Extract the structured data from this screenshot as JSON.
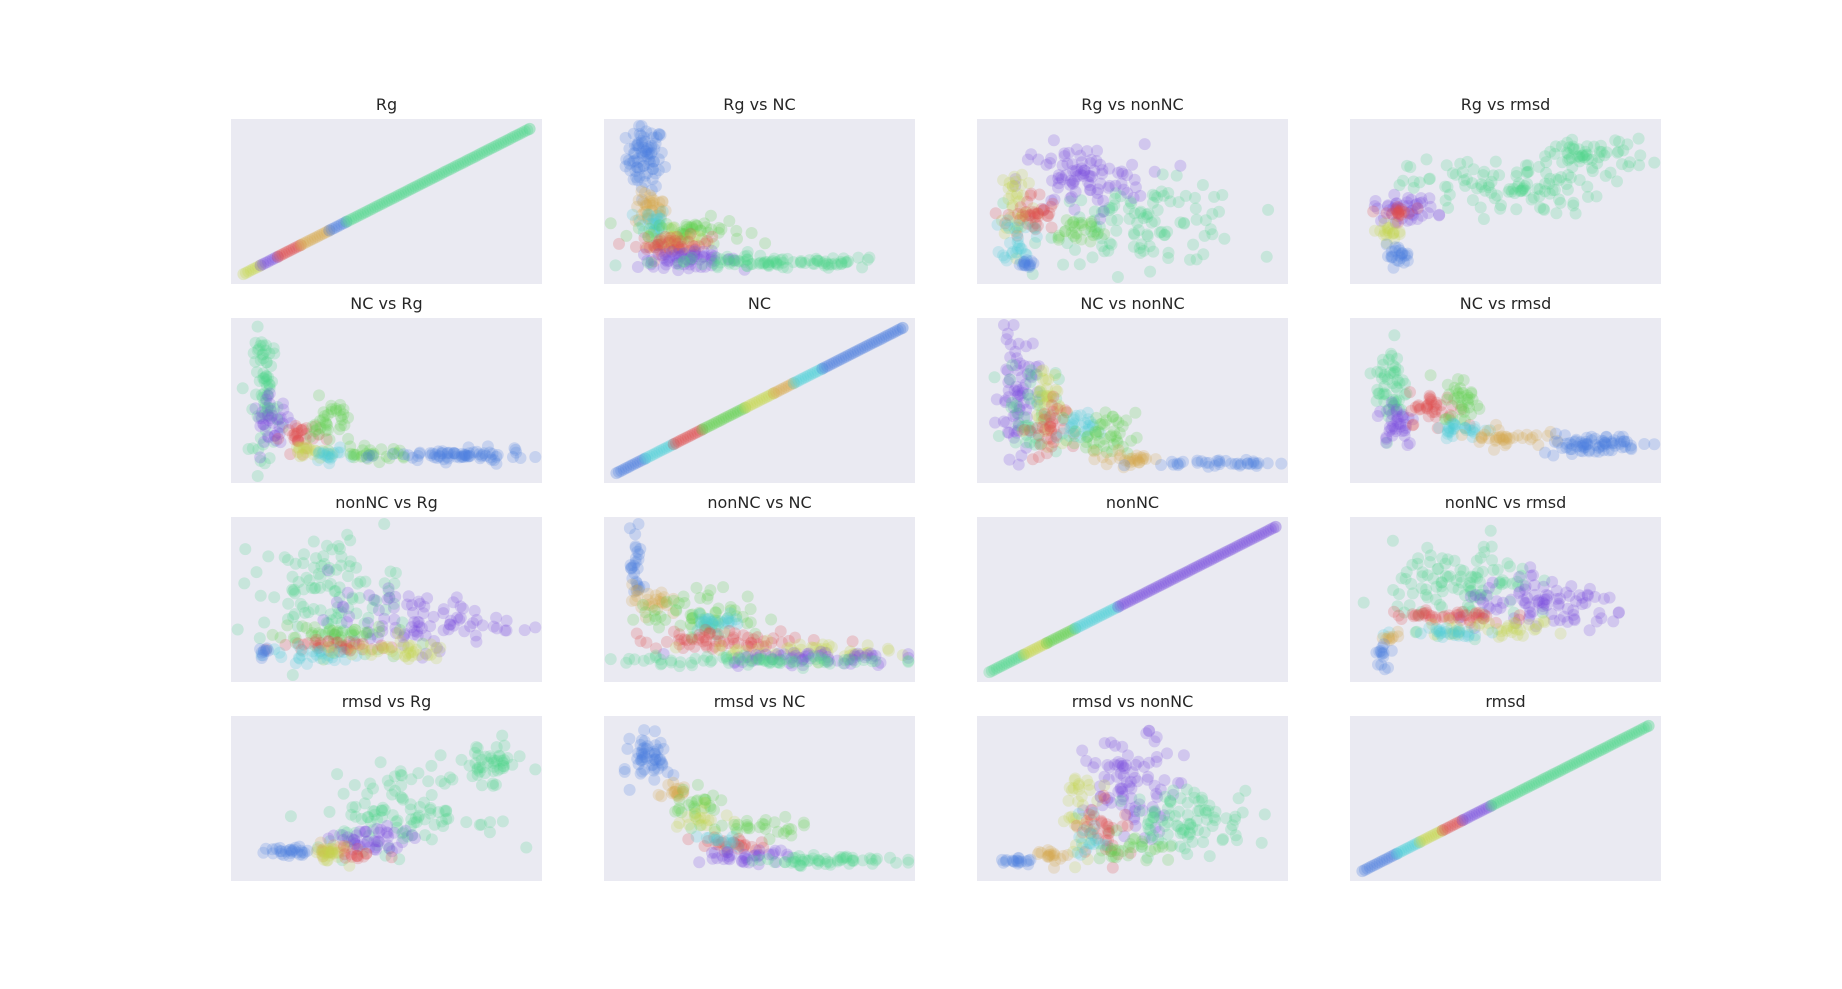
{
  "figure": {
    "background": "#ffffff",
    "panel_background": "#eaeaf2"
  },
  "colors": [
    "#4c7fe0",
    "#7a4fe0",
    "#e04c4c",
    "#4ccfd6",
    "#c5d64c",
    "#60d04c",
    "#4cd68a",
    "#d6a84c"
  ],
  "chart_data": [
    {
      "type": "scatter",
      "title": "Rg",
      "shape": "diag",
      "segments": [
        [
          0.0,
          0.06,
          4
        ],
        [
          0.06,
          0.12,
          1
        ],
        [
          0.12,
          0.2,
          2
        ],
        [
          0.2,
          0.3,
          7
        ],
        [
          0.3,
          0.36,
          0
        ],
        [
          0.36,
          1.0,
          6
        ]
      ]
    },
    {
      "type": "scatter",
      "title": "Rg vs NC",
      "shape": "scatter",
      "blobs": [
        [
          0,
          0.1,
          0.8,
          0.06,
          0.2,
          0.9
        ],
        [
          7,
          0.12,
          0.45,
          0.05,
          0.1,
          0.4
        ],
        [
          3,
          0.12,
          0.35,
          0.05,
          0.1,
          0.3
        ],
        [
          5,
          0.25,
          0.3,
          0.18,
          0.08,
          0.6
        ],
        [
          4,
          0.2,
          0.22,
          0.08,
          0.08,
          0.35
        ],
        [
          2,
          0.2,
          0.2,
          0.12,
          0.06,
          0.5
        ],
        [
          1,
          0.25,
          0.1,
          0.16,
          0.05,
          0.7
        ],
        [
          6,
          0.55,
          0.08,
          0.38,
          0.04,
          1.0
        ]
      ]
    },
    {
      "type": "scatter",
      "title": "Rg vs nonNC",
      "shape": "scatter",
      "blobs": [
        [
          6,
          0.55,
          0.35,
          0.32,
          0.25,
          1.2
        ],
        [
          1,
          0.32,
          0.65,
          0.2,
          0.22,
          1.0
        ],
        [
          4,
          0.1,
          0.5,
          0.06,
          0.25,
          0.4
        ],
        [
          2,
          0.15,
          0.4,
          0.08,
          0.15,
          0.4
        ],
        [
          3,
          0.1,
          0.25,
          0.05,
          0.15,
          0.3
        ],
        [
          5,
          0.3,
          0.3,
          0.1,
          0.1,
          0.3
        ],
        [
          0,
          0.12,
          0.07,
          0.03,
          0.02,
          0.15
        ]
      ]
    },
    {
      "type": "scatter",
      "title": "Rg vs rmsd",
      "shape": "scatter",
      "blobs": [
        [
          6,
          0.5,
          0.6,
          0.3,
          0.18,
          1.2
        ],
        [
          6,
          0.8,
          0.82,
          0.18,
          0.1,
          0.6
        ],
        [
          1,
          0.15,
          0.45,
          0.1,
          0.08,
          0.5
        ],
        [
          2,
          0.12,
          0.42,
          0.05,
          0.05,
          0.2
        ],
        [
          4,
          0.1,
          0.3,
          0.06,
          0.05,
          0.2
        ],
        [
          0,
          0.12,
          0.13,
          0.04,
          0.06,
          0.25
        ]
      ]
    },
    {
      "type": "scatter",
      "title": "NC vs Rg",
      "shape": "scatter",
      "blobs": [
        [
          6,
          0.08,
          0.55,
          0.04,
          0.4,
          0.8
        ],
        [
          1,
          0.1,
          0.35,
          0.06,
          0.15,
          0.4
        ],
        [
          2,
          0.2,
          0.25,
          0.06,
          0.1,
          0.3
        ],
        [
          5,
          0.3,
          0.35,
          0.06,
          0.15,
          0.4
        ],
        [
          4,
          0.22,
          0.15,
          0.06,
          0.05,
          0.2
        ],
        [
          3,
          0.3,
          0.12,
          0.06,
          0.04,
          0.2
        ],
        [
          5,
          0.45,
          0.13,
          0.12,
          0.04,
          0.3
        ],
        [
          0,
          0.75,
          0.12,
          0.22,
          0.04,
          0.8
        ]
      ]
    },
    {
      "type": "scatter",
      "title": "NC",
      "shape": "diag",
      "segments": [
        [
          0.0,
          0.1,
          0
        ],
        [
          0.1,
          0.2,
          3
        ],
        [
          0.2,
          0.3,
          2
        ],
        [
          0.3,
          0.45,
          5
        ],
        [
          0.45,
          0.55,
          4
        ],
        [
          0.55,
          0.62,
          7
        ],
        [
          0.62,
          0.72,
          3
        ],
        [
          0.72,
          1.0,
          0
        ]
      ]
    },
    {
      "type": "scatter",
      "title": "NC vs nonNC",
      "shape": "scatter",
      "blobs": [
        [
          1,
          0.1,
          0.55,
          0.06,
          0.4,
          0.8
        ],
        [
          6,
          0.15,
          0.45,
          0.08,
          0.3,
          0.5
        ],
        [
          4,
          0.2,
          0.5,
          0.06,
          0.25,
          0.4
        ],
        [
          2,
          0.2,
          0.3,
          0.06,
          0.2,
          0.4
        ],
        [
          3,
          0.3,
          0.3,
          0.06,
          0.1,
          0.3
        ],
        [
          5,
          0.4,
          0.25,
          0.1,
          0.15,
          0.5
        ],
        [
          7,
          0.5,
          0.1,
          0.1,
          0.05,
          0.3
        ],
        [
          0,
          0.8,
          0.07,
          0.18,
          0.02,
          0.4
        ]
      ]
    },
    {
      "type": "scatter",
      "title": "NC vs rmsd",
      "shape": "scatter",
      "blobs": [
        [
          6,
          0.1,
          0.6,
          0.05,
          0.3,
          0.6
        ],
        [
          1,
          0.12,
          0.35,
          0.06,
          0.15,
          0.4
        ],
        [
          2,
          0.25,
          0.45,
          0.08,
          0.1,
          0.4
        ],
        [
          5,
          0.35,
          0.5,
          0.06,
          0.15,
          0.4
        ],
        [
          3,
          0.35,
          0.3,
          0.1,
          0.05,
          0.3
        ],
        [
          7,
          0.5,
          0.25,
          0.12,
          0.06,
          0.4
        ],
        [
          0,
          0.8,
          0.2,
          0.16,
          0.06,
          0.8
        ]
      ]
    },
    {
      "type": "scatter",
      "title": "nonNC vs Rg",
      "shape": "scatter",
      "blobs": [
        [
          6,
          0.3,
          0.55,
          0.22,
          0.35,
          1.2
        ],
        [
          1,
          0.6,
          0.35,
          0.28,
          0.18,
          1.0
        ],
        [
          5,
          0.3,
          0.25,
          0.18,
          0.1,
          0.5
        ],
        [
          2,
          0.3,
          0.18,
          0.2,
          0.05,
          0.4
        ],
        [
          3,
          0.25,
          0.12,
          0.15,
          0.05,
          0.3
        ],
        [
          4,
          0.5,
          0.15,
          0.2,
          0.06,
          0.4
        ],
        [
          0,
          0.07,
          0.12,
          0.02,
          0.04,
          0.1
        ]
      ]
    },
    {
      "type": "scatter",
      "title": "nonNC vs NC",
      "shape": "scatter",
      "blobs": [
        [
          0,
          0.07,
          0.7,
          0.02,
          0.25,
          0.3
        ],
        [
          7,
          0.12,
          0.5,
          0.06,
          0.1,
          0.3
        ],
        [
          5,
          0.3,
          0.4,
          0.2,
          0.15,
          0.7
        ],
        [
          3,
          0.35,
          0.35,
          0.08,
          0.06,
          0.3
        ],
        [
          2,
          0.4,
          0.22,
          0.3,
          0.06,
          0.7
        ],
        [
          4,
          0.6,
          0.15,
          0.3,
          0.05,
          0.5
        ],
        [
          1,
          0.65,
          0.1,
          0.3,
          0.05,
          0.7
        ],
        [
          6,
          0.5,
          0.08,
          0.45,
          0.03,
          0.8
        ]
      ]
    },
    {
      "type": "scatter",
      "title": "nonNC",
      "shape": "diag",
      "segments": [
        [
          0.0,
          0.12,
          6
        ],
        [
          0.12,
          0.2,
          4
        ],
        [
          0.2,
          0.3,
          5
        ],
        [
          0.3,
          0.45,
          3
        ],
        [
          0.45,
          1.0,
          1
        ]
      ]
    },
    {
      "type": "scatter",
      "title": "nonNC vs rmsd",
      "shape": "scatter",
      "blobs": [
        [
          6,
          0.35,
          0.6,
          0.22,
          0.25,
          1.2
        ],
        [
          1,
          0.65,
          0.45,
          0.28,
          0.15,
          1.0
        ],
        [
          2,
          0.3,
          0.38,
          0.2,
          0.05,
          0.5
        ],
        [
          4,
          0.45,
          0.3,
          0.25,
          0.05,
          0.4
        ],
        [
          3,
          0.3,
          0.28,
          0.15,
          0.04,
          0.3
        ],
        [
          7,
          0.1,
          0.25,
          0.04,
          0.04,
          0.1
        ],
        [
          0,
          0.07,
          0.12,
          0.02,
          0.08,
          0.15
        ]
      ]
    },
    {
      "type": "scatter",
      "title": "rmsd vs Rg",
      "shape": "scatter",
      "blobs": [
        [
          6,
          0.55,
          0.4,
          0.25,
          0.25,
          1.2
        ],
        [
          6,
          0.85,
          0.75,
          0.12,
          0.12,
          0.5
        ],
        [
          1,
          0.45,
          0.2,
          0.12,
          0.1,
          0.5
        ],
        [
          7,
          0.3,
          0.15,
          0.08,
          0.05,
          0.2
        ],
        [
          4,
          0.3,
          0.12,
          0.05,
          0.05,
          0.2
        ],
        [
          0,
          0.15,
          0.13,
          0.08,
          0.03,
          0.3
        ],
        [
          2,
          0.4,
          0.12,
          0.05,
          0.05,
          0.15
        ]
      ]
    },
    {
      "type": "scatter",
      "title": "rmsd vs NC",
      "shape": "scatter",
      "blobs": [
        [
          0,
          0.12,
          0.78,
          0.06,
          0.15,
          0.6
        ],
        [
          7,
          0.2,
          0.55,
          0.05,
          0.08,
          0.2
        ],
        [
          5,
          0.28,
          0.45,
          0.08,
          0.1,
          0.3
        ],
        [
          4,
          0.3,
          0.35,
          0.08,
          0.08,
          0.2
        ],
        [
          5,
          0.5,
          0.3,
          0.15,
          0.06,
          0.3
        ],
        [
          2,
          0.4,
          0.18,
          0.12,
          0.06,
          0.3
        ],
        [
          3,
          0.35,
          0.2,
          0.06,
          0.05,
          0.15
        ],
        [
          1,
          0.45,
          0.1,
          0.15,
          0.04,
          0.4
        ],
        [
          6,
          0.75,
          0.07,
          0.22,
          0.03,
          0.6
        ]
      ]
    },
    {
      "type": "scatter",
      "title": "rmsd vs nonNC",
      "shape": "scatter",
      "blobs": [
        [
          1,
          0.5,
          0.6,
          0.15,
          0.3,
          1.0
        ],
        [
          6,
          0.7,
          0.35,
          0.2,
          0.2,
          1.0
        ],
        [
          4,
          0.32,
          0.4,
          0.06,
          0.25,
          0.4
        ],
        [
          2,
          0.4,
          0.3,
          0.08,
          0.2,
          0.4
        ],
        [
          3,
          0.35,
          0.25,
          0.05,
          0.15,
          0.2
        ],
        [
          5,
          0.5,
          0.15,
          0.12,
          0.1,
          0.3
        ],
        [
          7,
          0.22,
          0.12,
          0.05,
          0.06,
          0.2
        ],
        [
          0,
          0.1,
          0.07,
          0.06,
          0.02,
          0.2
        ]
      ]
    },
    {
      "type": "scatter",
      "title": "rmsd",
      "shape": "diag",
      "segments": [
        [
          0.0,
          0.12,
          0
        ],
        [
          0.12,
          0.2,
          3
        ],
        [
          0.2,
          0.28,
          4
        ],
        [
          0.28,
          0.35,
          2
        ],
        [
          0.35,
          0.45,
          1
        ],
        [
          0.45,
          1.0,
          6
        ]
      ]
    }
  ]
}
